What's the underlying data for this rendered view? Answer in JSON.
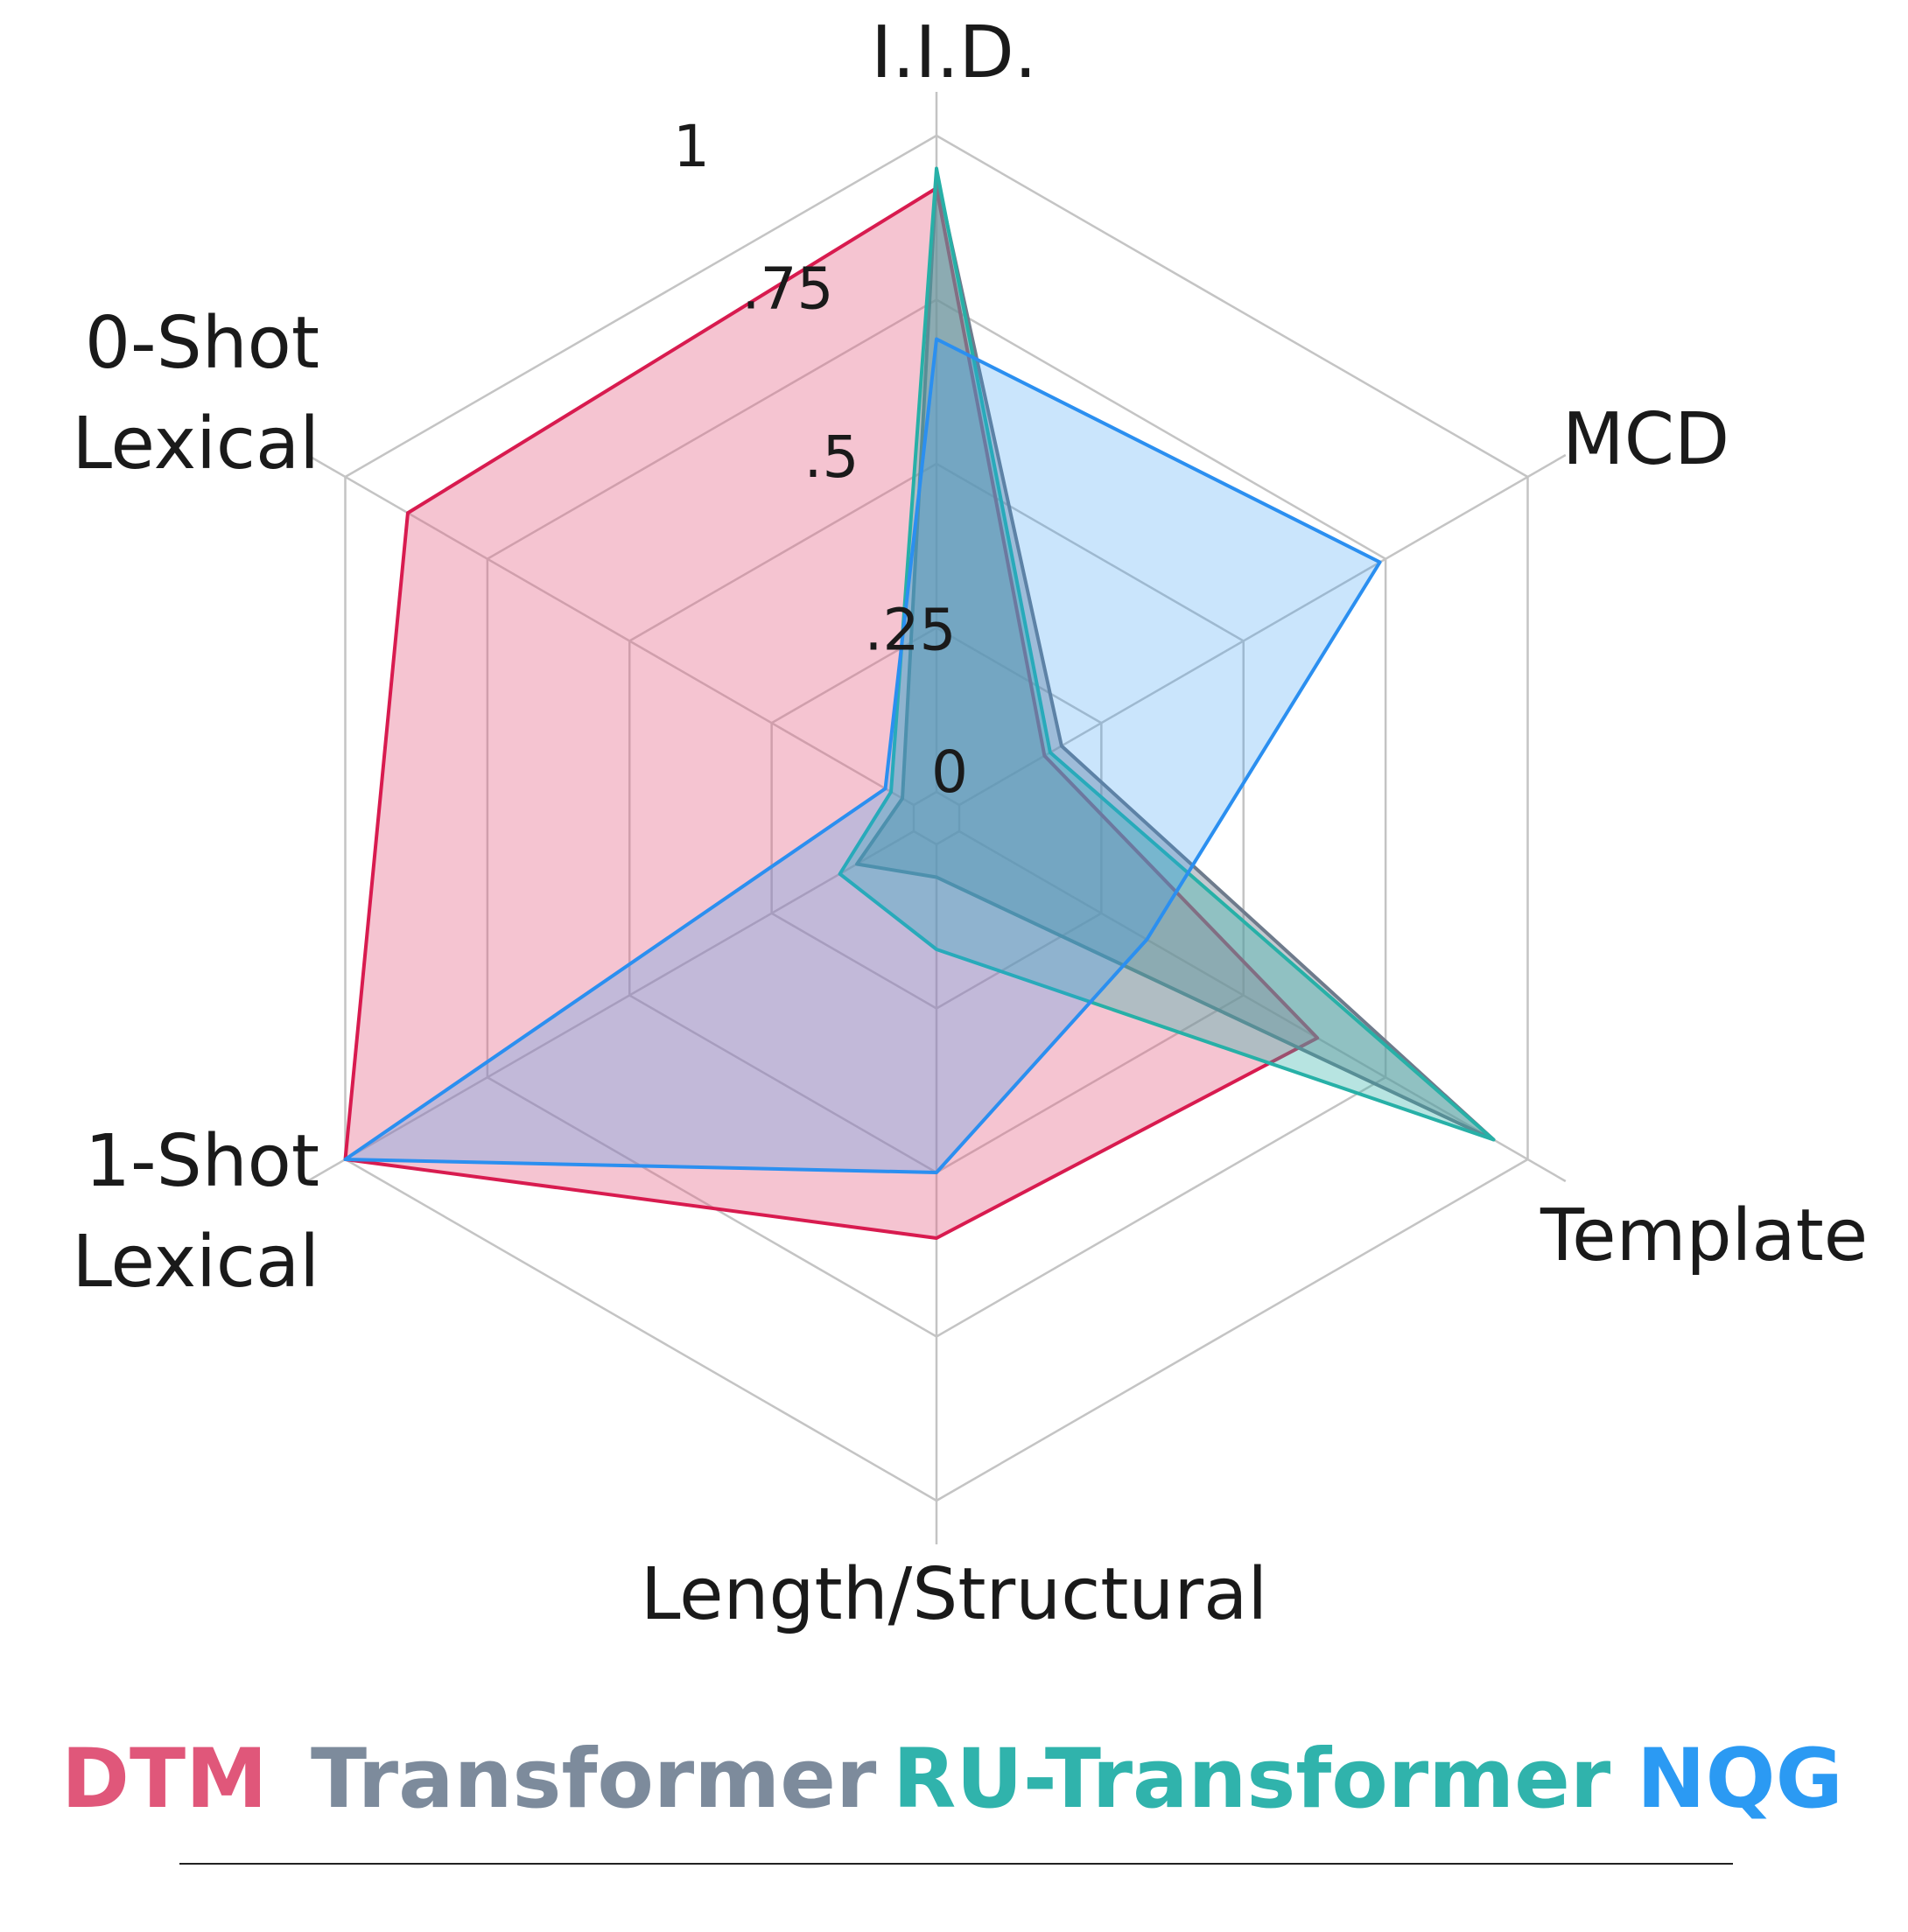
{
  "chart_data": {
    "type": "radar",
    "axes": [
      "I.I.D.",
      "MCD",
      "Template",
      "Length/Structural",
      "1-Shot\nLexical",
      "0-Shot\nLexical"
    ],
    "tick_labels": [
      "0",
      ".25",
      ".5",
      ".75",
      "1"
    ],
    "range": [
      0,
      1
    ],
    "grid": true,
    "series": [
      {
        "name": "DTM",
        "color": "#e0577a",
        "line": "#d81b4f",
        "fill": "rgba(228,100,135,0.38)",
        "values": [
          0.92,
          0.15,
          0.63,
          0.6,
          1.0,
          0.89
        ]
      },
      {
        "name": "Transformer",
        "color": "#7d8b9c",
        "line": "#6e7b8c",
        "fill": "rgba(125,135,150,0.45)",
        "values": [
          0.94,
          0.18,
          0.94,
          0.05,
          0.1,
          0.02
        ]
      },
      {
        "name": "RU-Transformer",
        "color": "#30b3ac",
        "line": "#27b0a7",
        "fill": "rgba(48,178,170,0.35)",
        "values": [
          0.95,
          0.16,
          0.94,
          0.16,
          0.13,
          0.04
        ]
      },
      {
        "name": "NQG",
        "color": "#2b9af3",
        "line": "#2b8ff0",
        "fill": "rgba(43,150,245,0.25)",
        "values": [
          0.69,
          0.74,
          0.33,
          0.5,
          1.0,
          0.05
        ]
      }
    ],
    "legend_placement": "bottom"
  }
}
